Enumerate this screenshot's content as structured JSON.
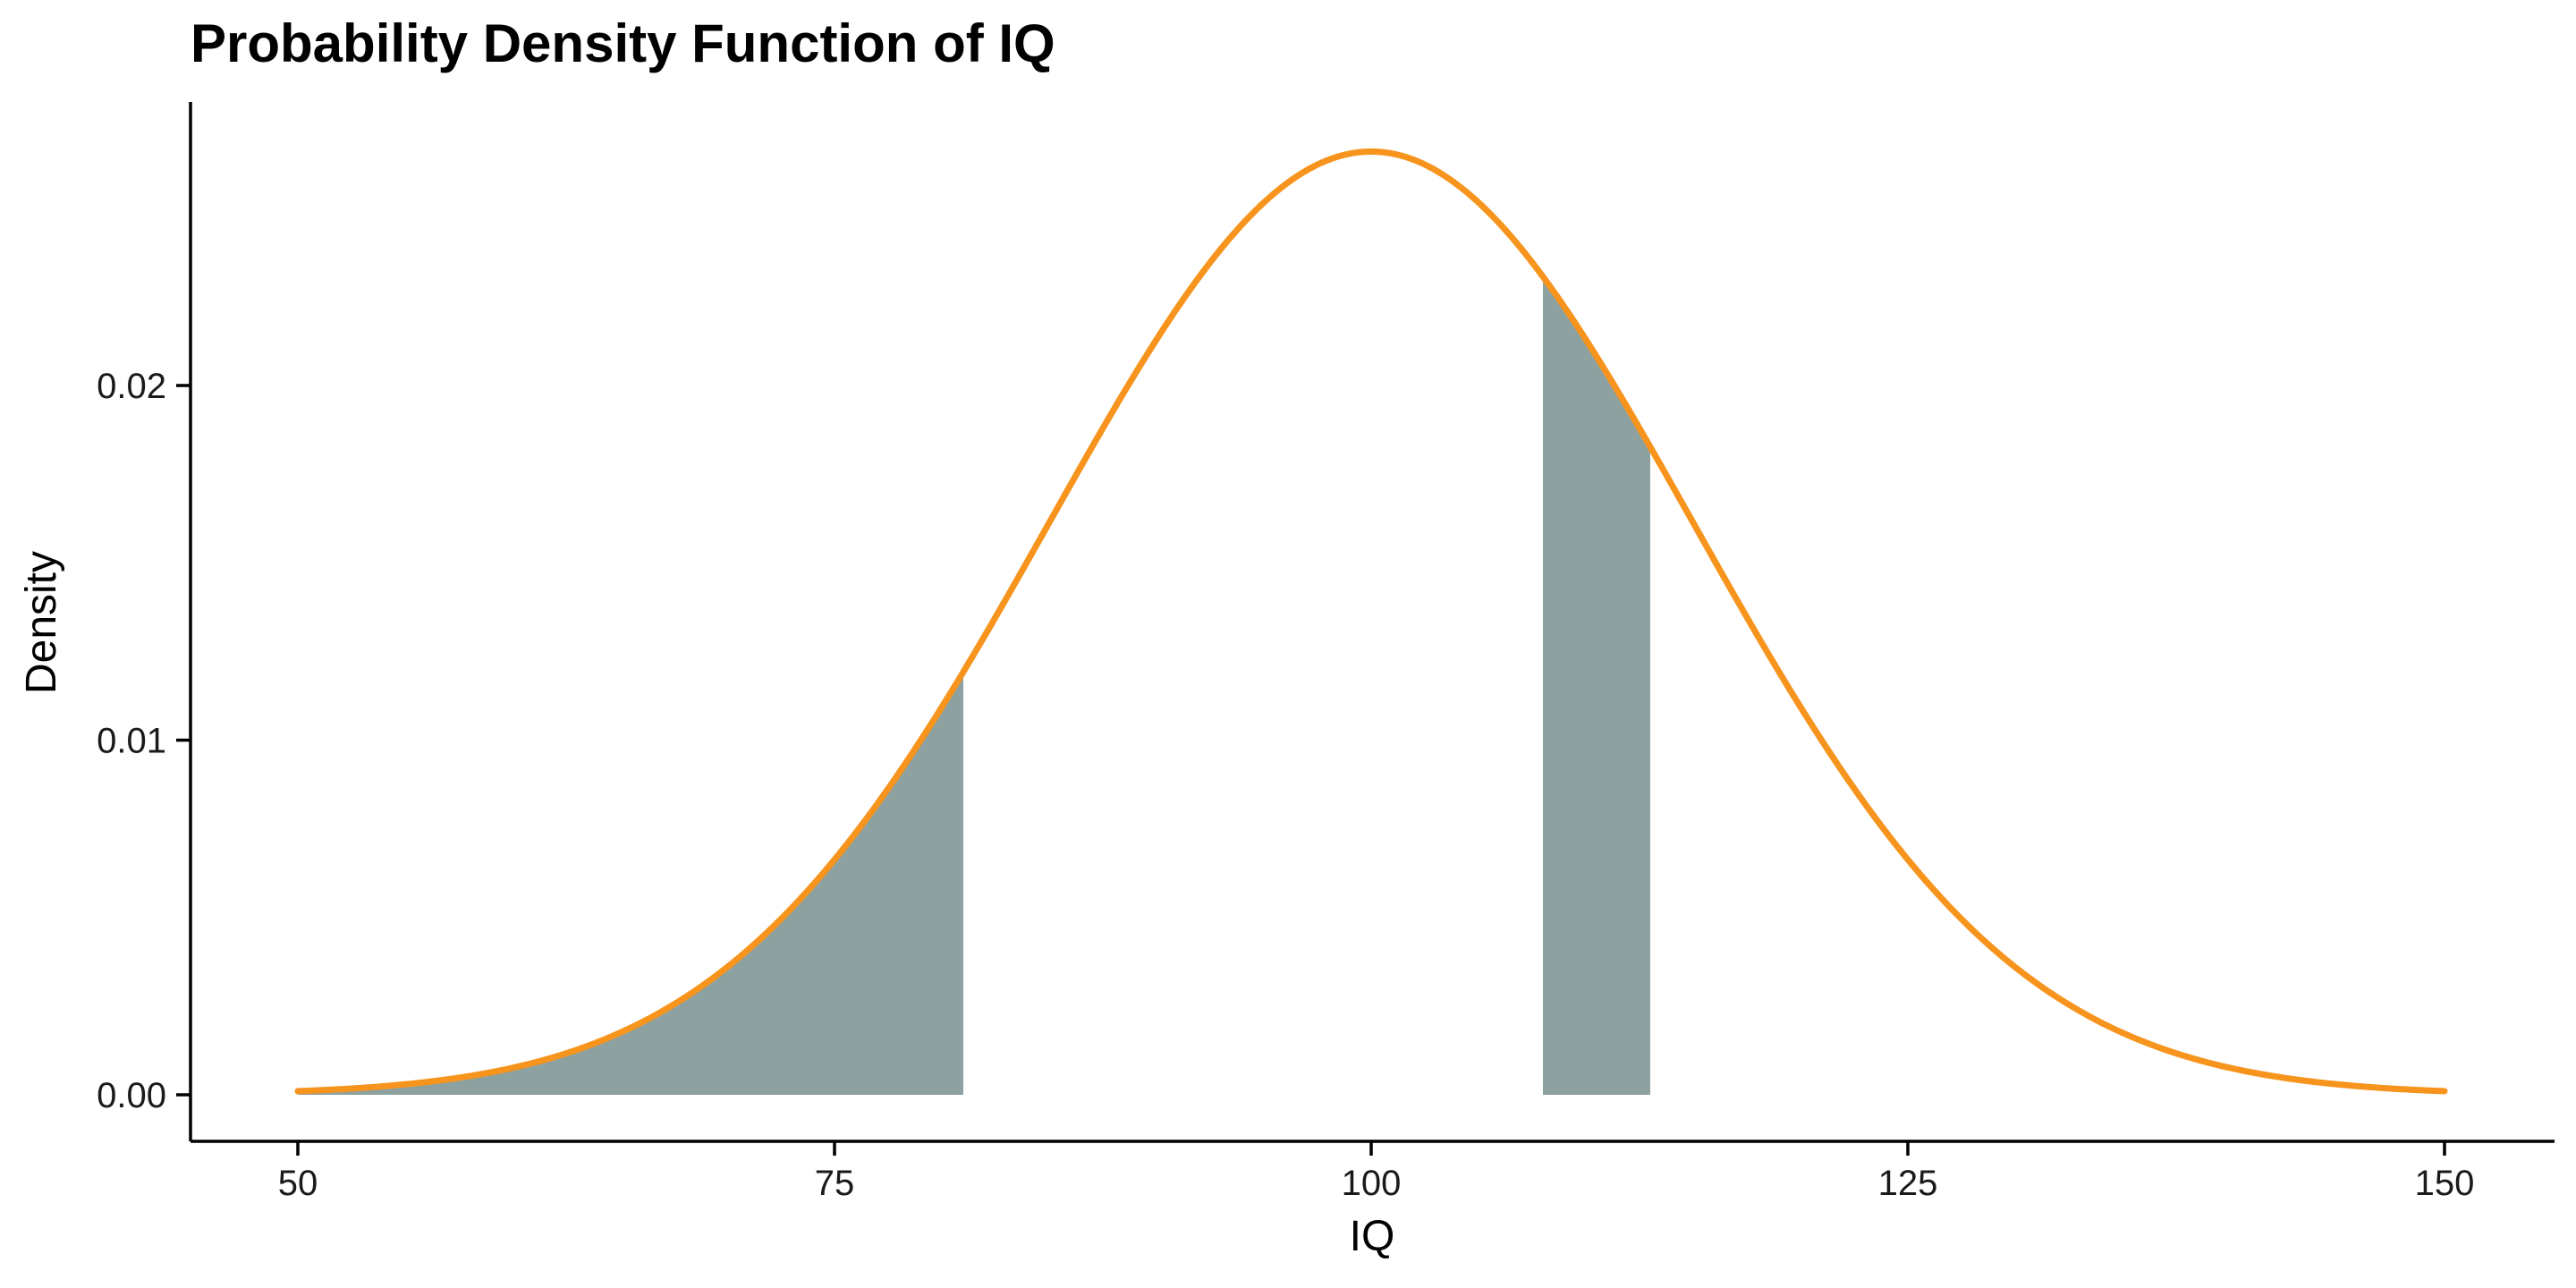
{
  "chart_data": {
    "type": "area",
    "title": "Probability Density Function of IQ",
    "xlabel": "IQ",
    "ylabel": "Density",
    "distribution": {
      "family": "normal",
      "mean": 100,
      "sd": 15
    },
    "xlim": [
      50,
      150
    ],
    "ylim": [
      0,
      0.0266
    ],
    "x_ticks": [
      50,
      75,
      100,
      125,
      150
    ],
    "x_tick_labels": [
      "50",
      "75",
      "100",
      "125",
      "150"
    ],
    "y_ticks": [
      0.0,
      0.01,
      0.02
    ],
    "y_tick_labels": [
      "0.00",
      "0.01",
      "0.02"
    ],
    "shaded_regions": [
      {
        "x_from": 50,
        "x_to": 81
      },
      {
        "x_from": 108,
        "x_to": 113
      }
    ],
    "grid": false,
    "colors": {
      "curve": "#F7941D",
      "shade": "#8DA1A1",
      "axis": "#000000"
    }
  }
}
